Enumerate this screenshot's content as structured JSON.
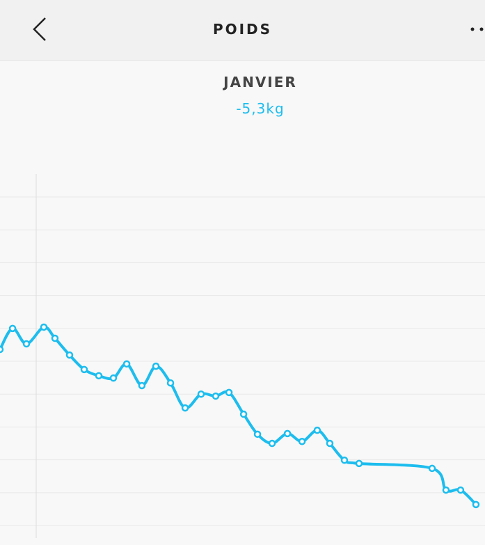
{
  "header": {
    "title": "POIDS"
  },
  "chart_data": {
    "type": "line",
    "title": "JANVIER",
    "subtitle": "-5,3kg",
    "x": [
      0,
      0.86,
      1.81,
      3.0,
      3.76,
      4.76,
      5.76,
      6.76,
      7.76,
      8.67,
      9.71,
      10.67,
      11.67,
      12.67,
      13.76,
      14.76,
      15.67,
      16.67,
      17.62,
      18.62,
      19.67,
      20.67,
      21.71,
      22.57,
      23.57,
      24.57,
      29.57,
      30.52,
      31.52,
      32.57
    ],
    "series": [
      {
        "color": "#1dbdee",
        "values": [
          5.36,
          6.0,
          5.53,
          6.04,
          5.7,
          5.19,
          4.75,
          4.56,
          4.49,
          4.92,
          4.26,
          4.85,
          4.34,
          3.58,
          4.0,
          3.94,
          4.05,
          3.39,
          2.78,
          2.5,
          2.8,
          2.56,
          2.9,
          2.5,
          1.99,
          1.89,
          1.74,
          1.08,
          1.08,
          0.64
        ]
      }
    ],
    "xlim": [
      0,
      33.19
    ],
    "ylim": [
      -0.38,
      10.7
    ],
    "yticks": [
      0,
      1,
      2,
      3,
      4,
      5,
      6,
      7,
      8,
      9,
      10
    ],
    "grid": true
  }
}
